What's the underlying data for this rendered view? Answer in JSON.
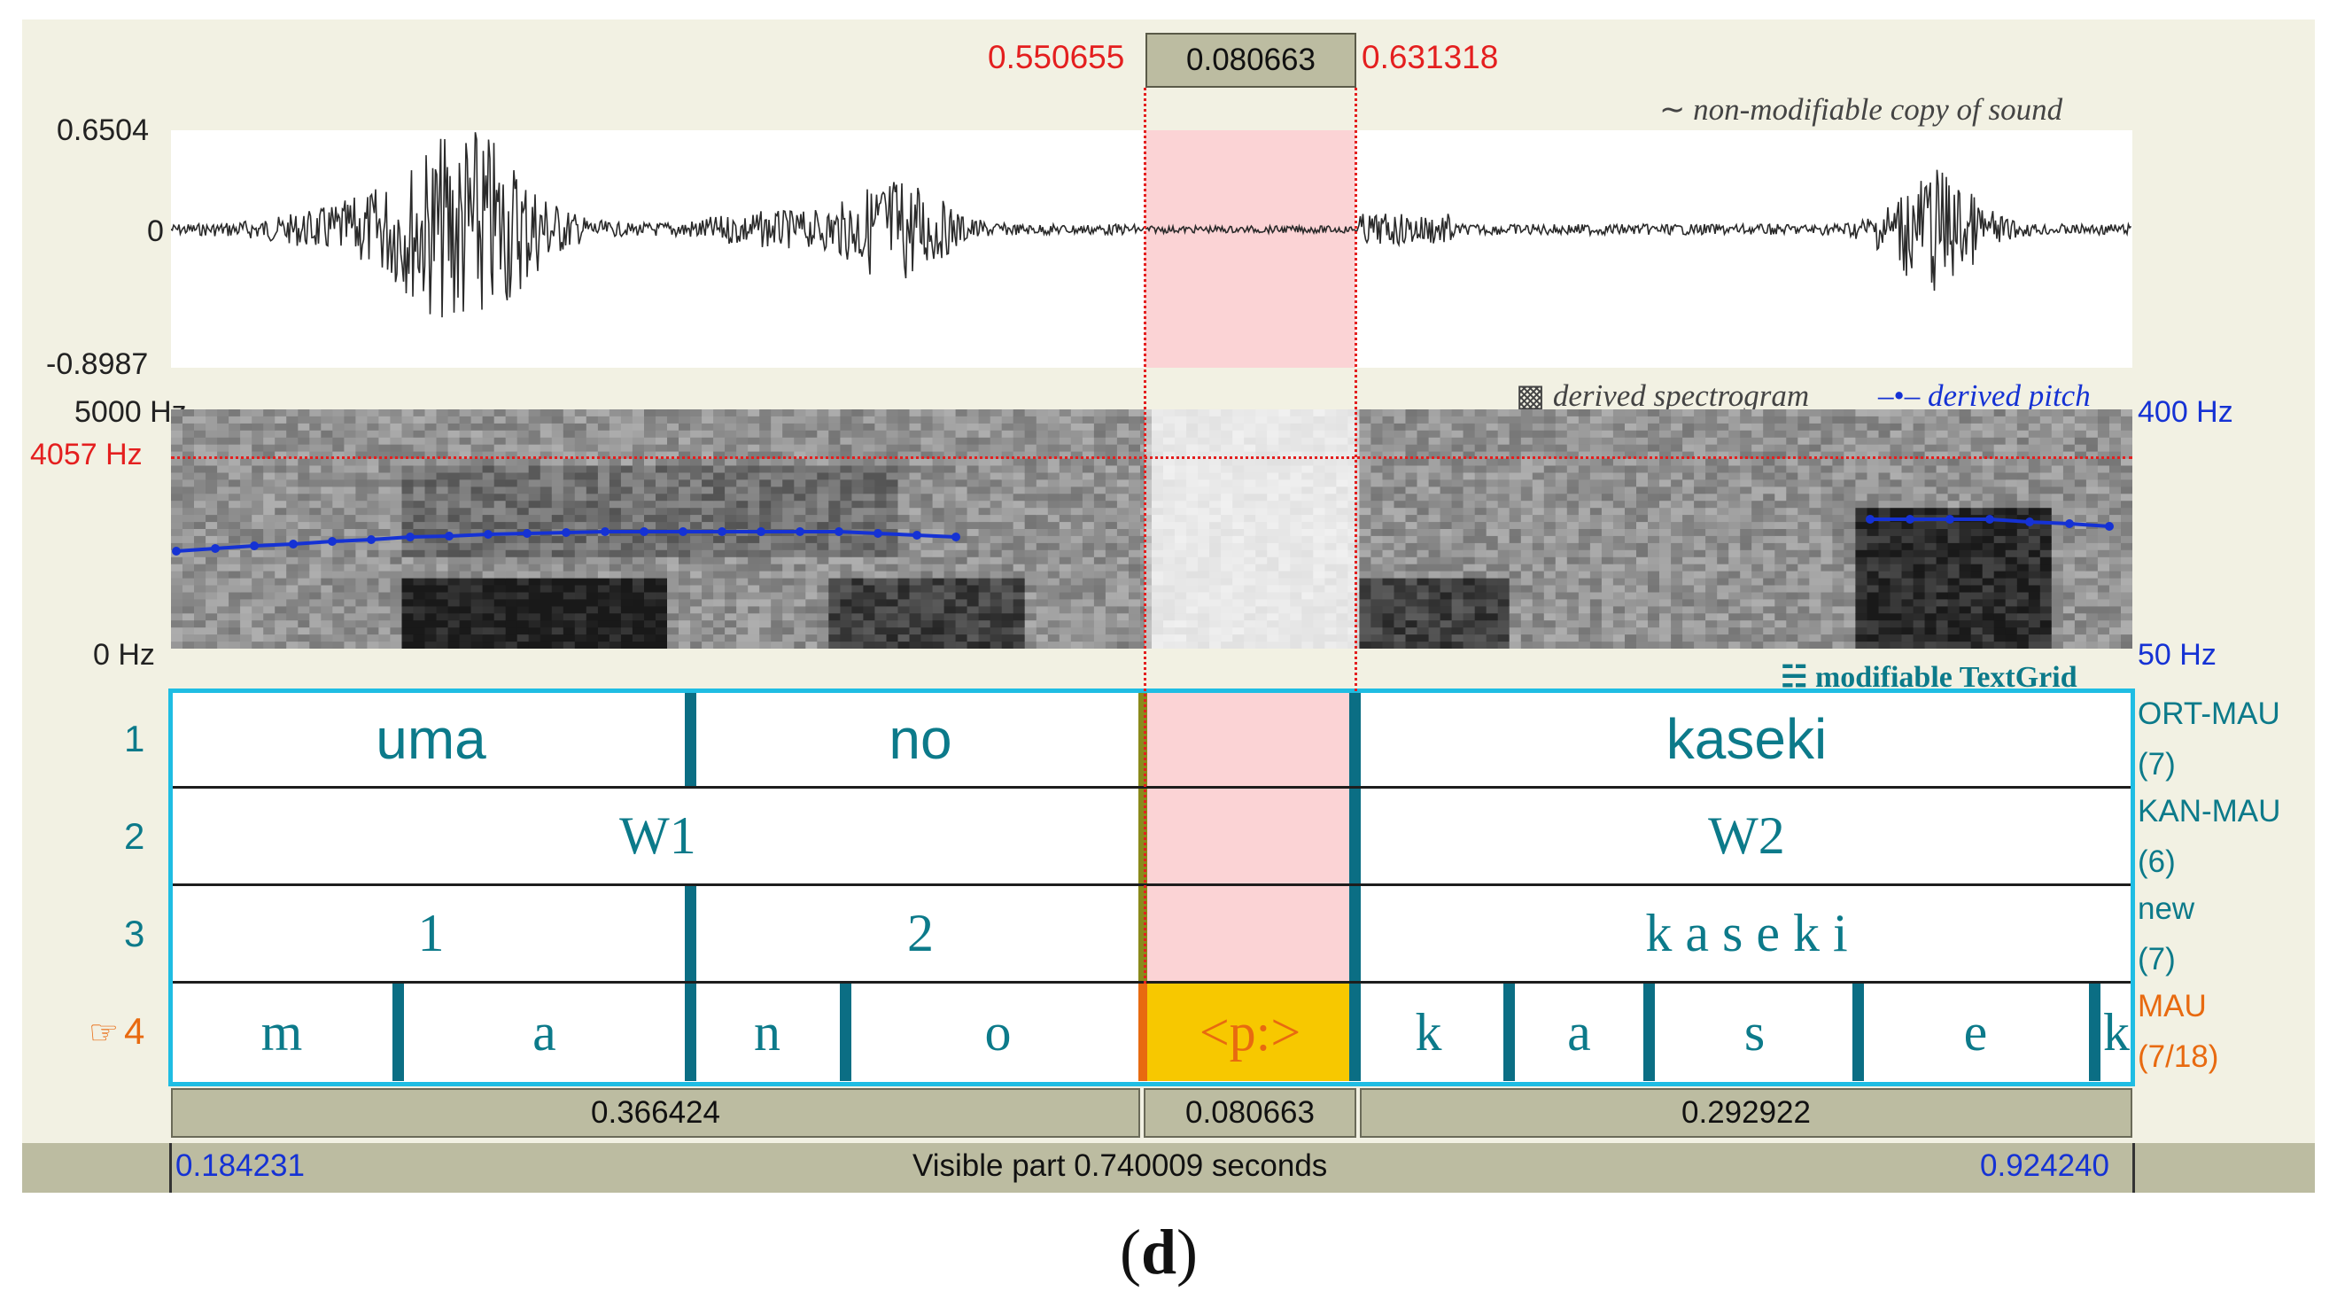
{
  "selection": {
    "start": "0.550655",
    "duration": "0.080663",
    "end": "0.631318"
  },
  "sound": {
    "title": "non-modifiable copy of sound",
    "title_icon": "tilde-icon",
    "y_max": "0.6504",
    "y_zero": "0",
    "y_min": "-0.8987"
  },
  "spectrogram": {
    "title": "derived spectrogram",
    "pitch_title": "derived pitch",
    "freq_max": "5000 Hz",
    "freq_cursor": "4057 Hz",
    "freq_min": "0 Hz",
    "pitch_max": "400 Hz",
    "pitch_min": "50 Hz",
    "colors": {
      "cursor": "#e41f1f",
      "pitch": "#1532d4"
    }
  },
  "textgrid": {
    "title": "modifiable TextGrid",
    "tiers": [
      {
        "number": "1",
        "name": "ORT-MAU",
        "count": "(7)",
        "intervals": [
          "uma",
          "no",
          "",
          "kaseki"
        ]
      },
      {
        "number": "2",
        "name": "KAN-MAU",
        "count": "(6)",
        "intervals": [
          "W1",
          "",
          "W2"
        ]
      },
      {
        "number": "3",
        "name": "new",
        "count": "(7)",
        "intervals": [
          "1",
          "2",
          "",
          "k a s e k i"
        ]
      },
      {
        "number": "4",
        "name": "MAU",
        "count": "(7/18)",
        "pointer": "☞",
        "intervals": [
          "m",
          "a",
          "n",
          "o",
          "<p:>",
          "k",
          "a",
          "s",
          "e",
          "k"
        ]
      }
    ]
  },
  "durations": {
    "left": "0.366424",
    "selection": "0.080663",
    "right": "0.292922"
  },
  "window": {
    "start": "0.184231",
    "visible": "Visible part 0.740009 seconds",
    "end": "0.924240"
  },
  "caption": "(d)",
  "colors": {
    "selection": "#fbd3d5",
    "tier_text": "#0c7a8a",
    "tier_border": "#1fbde3",
    "selected_interval": "#f7c800"
  }
}
